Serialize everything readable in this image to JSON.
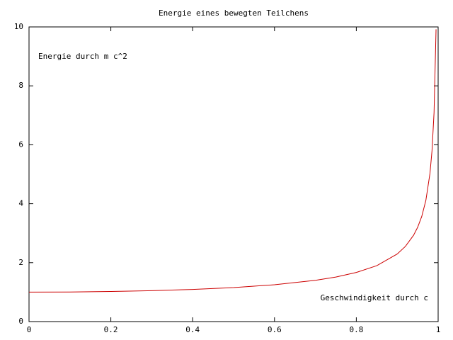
{
  "chart_data": {
    "type": "line",
    "title": "Energie eines bewegten Teilchens",
    "annotations": [
      "Energie durch m c^2",
      "Geschwindigkeit durch c"
    ],
    "x": [
      0,
      0.1,
      0.2,
      0.3,
      0.4,
      0.5,
      0.6,
      0.7,
      0.75,
      0.8,
      0.85,
      0.9,
      0.92,
      0.94,
      0.95,
      0.96,
      0.97,
      0.98,
      0.985,
      0.99,
      0.9949
    ],
    "series": [
      {
        "color": "#cc0000",
        "values": [
          1,
          1.005,
          1.021,
          1.048,
          1.091,
          1.155,
          1.25,
          1.4,
          1.512,
          1.667,
          1.898,
          2.294,
          2.552,
          2.931,
          3.203,
          3.571,
          4.113,
          5.025,
          5.795,
          7.089,
          9.92
        ]
      }
    ],
    "xlim": [
      0,
      1
    ],
    "ylim": [
      0,
      10
    ],
    "xticks": [
      0,
      0.2,
      0.4,
      0.6,
      0.8,
      1
    ],
    "yticks": [
      0,
      2,
      4,
      6,
      8,
      10
    ],
    "grid": false
  }
}
